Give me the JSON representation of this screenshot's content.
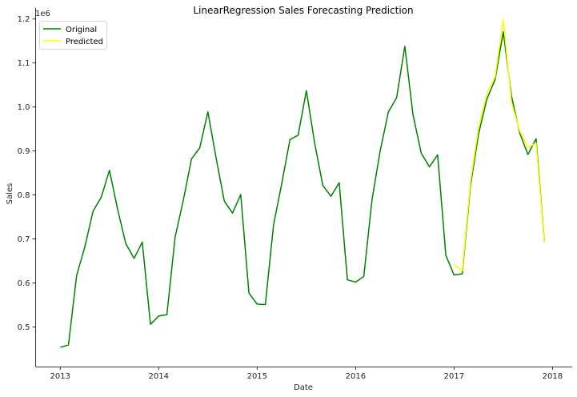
{
  "chart_data": {
    "type": "line",
    "title": "LinearRegression Sales Forecasting Prediction",
    "xlabel": "Date",
    "ylabel": "Sales",
    "y_scale_label": "1e6",
    "x_ticks": [
      "2013",
      "2014",
      "2015",
      "2016",
      "2017",
      "2018"
    ],
    "y_ticks": [
      "0.5",
      "0.6",
      "0.7",
      "0.8",
      "0.9",
      "1.0",
      "1.1",
      "1.2"
    ],
    "xlim": [
      2012.75,
      2018.2
    ],
    "ylim": [
      410000,
      1225000
    ],
    "grid": false,
    "legend_position": "top-left",
    "series": [
      {
        "name": "Original",
        "color": "#008000",
        "x": [
          "2013-01",
          "2013-02",
          "2013-03",
          "2013-04",
          "2013-05",
          "2013-06",
          "2013-07",
          "2013-08",
          "2013-09",
          "2013-10",
          "2013-11",
          "2013-12",
          "2014-01",
          "2014-02",
          "2014-03",
          "2014-04",
          "2014-05",
          "2014-06",
          "2014-07",
          "2014-08",
          "2014-09",
          "2014-10",
          "2014-11",
          "2014-12",
          "2015-01",
          "2015-02",
          "2015-03",
          "2015-04",
          "2015-05",
          "2015-06",
          "2015-07",
          "2015-08",
          "2015-09",
          "2015-10",
          "2015-11",
          "2015-12",
          "2016-01",
          "2016-02",
          "2016-03",
          "2016-04",
          "2016-05",
          "2016-06",
          "2016-07",
          "2016-08",
          "2016-09",
          "2016-10",
          "2016-11",
          "2016-12",
          "2017-01",
          "2017-02",
          "2017-03",
          "2017-04",
          "2017-05",
          "2017-06",
          "2017-07",
          "2017-08",
          "2017-09",
          "2017-10",
          "2017-11",
          "2017-12"
        ],
        "values": [
          454000,
          459000,
          617000,
          682000,
          763000,
          795000,
          856000,
          767000,
          689000,
          656000,
          693000,
          506000,
          525000,
          528000,
          704000,
          788000,
          882000,
          907000,
          989000,
          884000,
          786000,
          759000,
          801000,
          577000,
          552000,
          551000,
          732000,
          826000,
          926000,
          936000,
          1037000,
          919000,
          822000,
          797000,
          828000,
          607000,
          602000,
          615000,
          789000,
          901000,
          989000,
          1021000,
          1138000,
          982000,
          895000,
          864000,
          891000,
          663000,
          618000,
          621000,
          821000,
          940000,
          1018000,
          1062000,
          1171000,
          1025000,
          941000,
          892000,
          928000,
          695000
        ]
      },
      {
        "name": "Predicted",
        "color": "#ffff00",
        "x": [
          "2017-01",
          "2017-02",
          "2017-03",
          "2017-04",
          "2017-05",
          "2017-06",
          "2017-07",
          "2017-08",
          "2017-09",
          "2017-10",
          "2017-11",
          "2017-12"
        ],
        "values": [
          642000,
          628000,
          830000,
          955000,
          1030000,
          1068000,
          1200000,
          1010000,
          946000,
          908000,
          918000,
          692000
        ]
      }
    ]
  }
}
